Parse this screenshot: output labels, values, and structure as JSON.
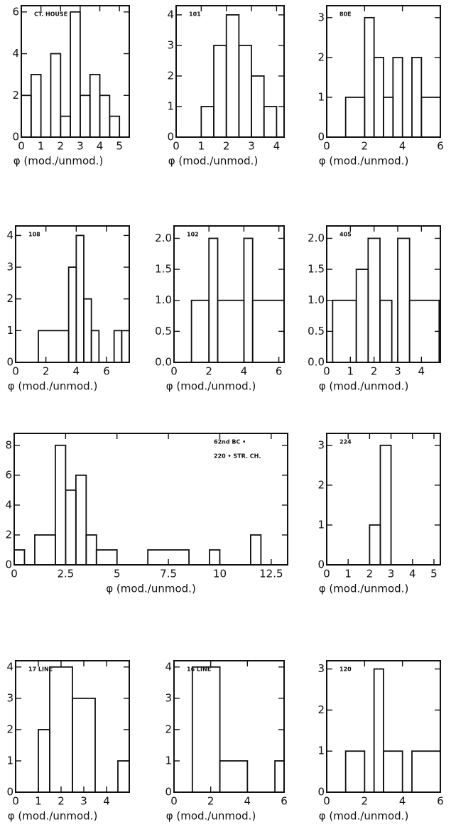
{
  "chart_data": [
    {
      "type": "histogram",
      "annotations": [
        "CT. HOUSE"
      ],
      "xlabel": "φ (mod./unmod.)",
      "bins": [
        0,
        0.5,
        1,
        1.5,
        2,
        2.5,
        3,
        3.5,
        4,
        4.5,
        5,
        5.5
      ],
      "counts": [
        2,
        3,
        0,
        4,
        1,
        6,
        2,
        3,
        2,
        1,
        0
      ],
      "xlim": [
        0,
        5.5
      ],
      "ylim": [
        0,
        6.3
      ],
      "xticks": [
        0,
        1,
        2,
        3,
        4,
        5
      ],
      "yticks": [
        0,
        2,
        4,
        6
      ]
    },
    {
      "type": "histogram",
      "annotations": [
        "101"
      ],
      "xlabel": "φ (mod./unmod.)",
      "bins": [
        1,
        1.5,
        2,
        2.5,
        3,
        3.5,
        4
      ],
      "counts": [
        1,
        3,
        4,
        3,
        2,
        1
      ],
      "xlim": [
        0,
        4.3
      ],
      "ylim": [
        0,
        4.3
      ],
      "xticks": [
        0,
        1,
        2,
        3,
        4
      ],
      "yticks": [
        0,
        1,
        2,
        3,
        4
      ]
    },
    {
      "type": "histogram",
      "annotations": [
        "80E"
      ],
      "xlabel": "φ (mod./unmod.)",
      "bins": [
        1,
        2,
        2.5,
        3,
        3.5,
        4,
        4.5,
        5,
        6
      ],
      "counts": [
        1,
        3,
        2,
        1,
        2,
        0,
        2,
        1
      ],
      "xlim": [
        0,
        6
      ],
      "ylim": [
        0,
        3.3
      ],
      "xticks": [
        0,
        2,
        4,
        6
      ],
      "yticks": [
        0,
        1,
        2,
        3
      ]
    },
    {
      "type": "histogram",
      "annotations": [
        "108"
      ],
      "xlabel": "φ (mod./unmod.)",
      "bins": [
        1.5,
        3.5,
        4,
        4.5,
        5,
        5.5,
        6.5,
        7,
        7.5
      ],
      "counts": [
        1,
        3,
        4,
        2,
        1,
        0,
        1,
        1
      ],
      "xlim": [
        0,
        7.5
      ],
      "ylim": [
        0,
        4.3
      ],
      "xticks": [
        0,
        2,
        4,
        6
      ],
      "yticks": [
        0,
        1,
        2,
        3,
        4
      ]
    },
    {
      "type": "histogram",
      "annotations": [
        "102"
      ],
      "xlabel": "φ (mod./unmod.)",
      "bins": [
        1,
        2,
        2.5,
        4,
        4.5,
        6.3
      ],
      "counts": [
        1,
        2,
        1,
        2,
        1
      ],
      "xlim": [
        0,
        6.3
      ],
      "ylim": [
        0,
        2.2
      ],
      "xticks": [
        0,
        2,
        4,
        6
      ],
      "yticks": [
        {
          "value": 0,
          "label": "0.0"
        },
        0.5,
        {
          "value": 1,
          "label": "1.0"
        },
        1.5,
        {
          "value": 2,
          "label": "2.0"
        }
      ]
    },
    {
      "type": "histogram",
      "annotations": [
        "405"
      ],
      "xlabel": "φ (mod./unmod.)",
      "bins": [
        0.25,
        1.25,
        1.75,
        2.25,
        2.75,
        3,
        3.5,
        4.75
      ],
      "counts": [
        1,
        1.5,
        2,
        1,
        0,
        2,
        1
      ],
      "xlim": [
        0,
        4.8
      ],
      "ylim": [
        0,
        2.2
      ],
      "xticks": [
        0,
        1,
        2,
        3,
        4
      ],
      "yticks": [
        {
          "value": 0,
          "label": "0.0"
        },
        0.5,
        {
          "value": 1,
          "label": "1.0"
        },
        1.5,
        {
          "value": 2,
          "label": "2.0"
        }
      ]
    },
    {
      "type": "histogram",
      "annotations": [
        "62nd BC •",
        "220 • STR. CH."
      ],
      "xlabel": "φ (mod./unmod.)",
      "bins": [
        0,
        0.5,
        1,
        2,
        2.5,
        3,
        3.5,
        4,
        5,
        6.5,
        8.5,
        9.5,
        10,
        11.5,
        12,
        13.3
      ],
      "counts": [
        1,
        0,
        2,
        8,
        5,
        6,
        2,
        1,
        0,
        1,
        0,
        1,
        0,
        2,
        0
      ],
      "xlim": [
        0,
        13.3
      ],
      "ylim": [
        0,
        8.8
      ],
      "xticks": [
        0,
        2.5,
        5,
        7.5,
        10,
        12.5
      ],
      "yticks": [
        0,
        2,
        4,
        6,
        8
      ]
    },
    {
      "type": "histogram",
      "annotations": [
        "224"
      ],
      "xlabel": "φ (mod./unmod.)",
      "bins": [
        2,
        2.5,
        3
      ],
      "counts": [
        1,
        3
      ],
      "xlim": [
        0,
        5.3
      ],
      "ylim": [
        0,
        3.3
      ],
      "xticks": [
        0,
        1,
        2,
        3,
        4,
        5
      ],
      "yticks": [
        0,
        1,
        2,
        3
      ]
    },
    {
      "type": "histogram",
      "annotations": [
        "17 LINE"
      ],
      "xlabel": "φ (mod./unmod.)",
      "bins": [
        1,
        1.5,
        2.5,
        3.5,
        4.5,
        5
      ],
      "counts": [
        2,
        4,
        3,
        0,
        1
      ],
      "xlim": [
        0,
        5
      ],
      "ylim": [
        0,
        4.2
      ],
      "xticks": [
        0,
        1,
        2,
        3,
        4
      ],
      "yticks": [
        0,
        1,
        2,
        3,
        4
      ]
    },
    {
      "type": "histogram",
      "annotations": [
        "16 LINE"
      ],
      "xlabel": "φ (mod./unmod.)",
      "bins": [
        1,
        2.5,
        4,
        5.5,
        6
      ],
      "counts": [
        4,
        1,
        0,
        1
      ],
      "xlim": [
        0,
        6
      ],
      "ylim": [
        0,
        4.2
      ],
      "xticks": [
        0,
        2,
        4,
        6
      ],
      "yticks": [
        0,
        1,
        2,
        3,
        4
      ]
    },
    {
      "type": "histogram",
      "annotations": [
        "120"
      ],
      "xlabel": "φ (mod./unmod.)",
      "bins": [
        1,
        2,
        2.5,
        3,
        4,
        4.5,
        6
      ],
      "counts": [
        1,
        0,
        3,
        1,
        0,
        1
      ],
      "xlim": [
        0,
        6
      ],
      "ylim": [
        0,
        3.2
      ],
      "xticks": [
        0,
        2,
        4,
        6
      ],
      "yticks": [
        0,
        1,
        2,
        3
      ]
    }
  ]
}
